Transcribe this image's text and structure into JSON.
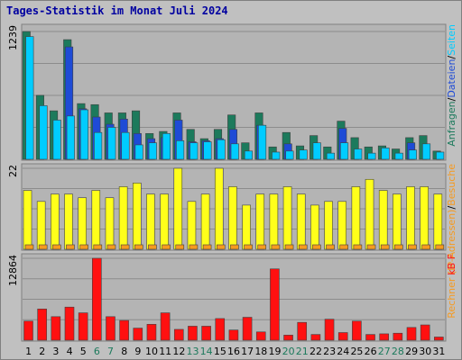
{
  "title": "Tages-Statistik im Monat Juli 2024",
  "colors": {
    "background": "#c0c0c0",
    "panel": "#b4b4b4",
    "anfragen": "#1c7a5c",
    "dateien": "#1e4bd6",
    "seiten": "#00ccff",
    "rechner": "#ffff1a",
    "besuche": "#f59a20",
    "kbf": "#ff1010",
    "day_normal": "#000000",
    "day_weekend": "#1c7a5c",
    "title": "#0000a0"
  },
  "legend": {
    "panel1": [
      {
        "text": "Anfragen",
        "color": "#1c7a5c"
      },
      {
        "text": "/",
        "color": "#000000"
      },
      {
        "text": "Dateien",
        "color": "#1e4bd6"
      },
      {
        "text": "/",
        "color": "#000000"
      },
      {
        "text": "Seiten",
        "color": "#00ccff"
      }
    ],
    "panel2": [
      {
        "text": "Rechner (IP-Adressen)",
        "color": "#f59a20"
      },
      {
        "text": "/",
        "color": "#000000"
      },
      {
        "text": "Besuche",
        "color": "#f59a20"
      }
    ],
    "panel3": [
      {
        "text": "kB F",
        "color": "#ff1010"
      }
    ]
  },
  "chart_data": {
    "type": "bar",
    "title": "Tages-Statistik im Monat Juli 2024",
    "categories": [
      "1",
      "2",
      "3",
      "4",
      "5",
      "6",
      "7",
      "8",
      "9",
      "10",
      "11",
      "12",
      "13",
      "14",
      "15",
      "16",
      "17",
      "18",
      "19",
      "20",
      "21",
      "22",
      "23",
      "24",
      "25",
      "26",
      "27",
      "28",
      "29",
      "30",
      "31"
    ],
    "weekend_days": [
      "6",
      "7",
      "13",
      "14",
      "20",
      "21",
      "27",
      "28"
    ],
    "panels": [
      {
        "ylabel": "1239",
        "ymax": 1239,
        "series": [
          {
            "name": "Anfragen",
            "values": [
              1239,
              620,
              470,
              1160,
              540,
              530,
              450,
              450,
              470,
              250,
              270,
              450,
              290,
              200,
              290,
              430,
              160,
              450,
              120,
              260,
              130,
              230,
              120,
              370,
              210,
              120,
              130,
              100,
              210,
              230,
              80
            ]
          },
          {
            "name": "Dateien",
            "values": [
              0,
              0,
              0,
              1090,
              490,
              410,
              340,
              390,
              250,
              200,
              210,
              380,
              170,
              180,
              200,
              290,
              0,
              330,
              0,
              150,
              0,
              0,
              0,
              300,
              0,
              0,
              0,
              0,
              160,
              0,
              0
            ]
          },
          {
            "name": "Seiten",
            "values": [
              1190,
              520,
              380,
              420,
              480,
              260,
              310,
              260,
              140,
              160,
              250,
              180,
              160,
              170,
              190,
              150,
              80,
              330,
              70,
              80,
              90,
              160,
              60,
              160,
              100,
              60,
              110,
              60,
              90,
              150,
              70
            ]
          }
        ]
      },
      {
        "ylabel": "22",
        "ymax": 22,
        "series": [
          {
            "name": "Rechner (IP-Adressen)",
            "values": [
              16,
              13,
              15,
              15,
              14,
              16,
              14,
              17,
              18,
              15,
              15,
              22,
              13,
              15,
              22,
              17,
              12,
              15,
              15,
              17,
              15,
              12,
              13,
              13,
              17,
              19,
              16,
              15,
              17,
              17,
              15
            ]
          },
          {
            "name": "Besuche",
            "values": [
              1,
              1,
              1,
              1,
              1,
              1,
              1,
              1,
              1,
              1,
              1,
              1,
              1,
              1,
              1,
              1,
              1,
              1,
              1,
              1,
              1,
              1,
              1,
              1,
              1,
              1,
              1,
              1,
              1,
              1,
              1
            ]
          }
        ]
      },
      {
        "ylabel": "12864",
        "ymax": 12864,
        "series": [
          {
            "name": "kB F",
            "values": [
              3000,
              4900,
              3700,
              5200,
              4300,
              12864,
              3700,
              3100,
              1900,
              2500,
              4300,
              1700,
              2200,
              2200,
              3400,
              1600,
              3600,
              1300,
              11200,
              800,
              2800,
              900,
              3300,
              1200,
              3000,
              900,
              1000,
              1100,
              2000,
              2400,
              500
            ]
          }
        ]
      }
    ],
    "grid": true
  }
}
